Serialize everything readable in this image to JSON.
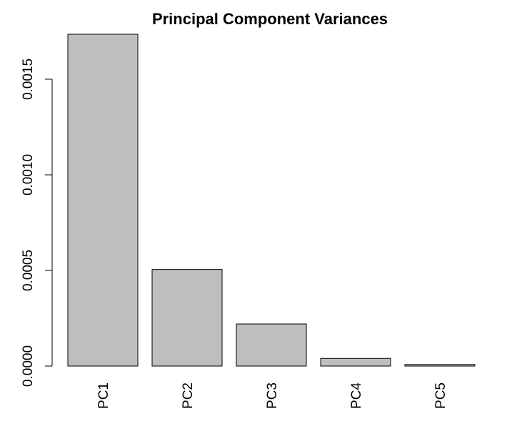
{
  "chart_data": {
    "type": "bar",
    "title": "Principal Component Variances",
    "xlabel": "",
    "ylabel": "",
    "categories": [
      "PC1",
      "PC2",
      "PC3",
      "PC4",
      "PC5"
    ],
    "values": [
      0.001735,
      0.000505,
      0.00022,
      4e-05,
      8e-06
    ],
    "ylim": [
      0,
      0.001735
    ],
    "yticks": [
      0.0,
      0.0005,
      0.001,
      0.0015
    ],
    "ytick_labels": [
      "0.0000",
      "0.0005",
      "0.0010",
      "0.0015"
    ],
    "bar_color": "#bebebe",
    "border_color": "#000000",
    "grid": false,
    "legend": "none"
  }
}
